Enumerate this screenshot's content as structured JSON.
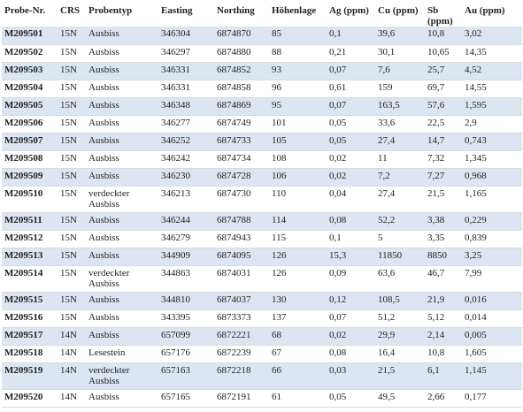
{
  "table": {
    "headers": [
      "Probe-Nr.",
      "CRS",
      "Probentyp",
      "Easting",
      "Northing",
      "Höhenlage",
      "Ag (ppm)",
      "Cu (ppm)",
      "Sb (ppm)",
      "Au (ppm)"
    ],
    "rows": [
      [
        "M209501",
        "15N",
        "Ausbiss",
        "346304",
        "6874870",
        "85",
        "0,1",
        "39,6",
        "10,8",
        "3,02"
      ],
      [
        "M209502",
        "15N",
        "Ausbiss",
        "346297",
        "6874880",
        "88",
        "0,21",
        "30,1",
        "10,65",
        "14,35"
      ],
      [
        "M209503",
        "15N",
        "Ausbiss",
        "346331",
        "6874852",
        "93",
        "0,07",
        "7,6",
        "25,7",
        "4,52"
      ],
      [
        "M209504",
        "15N",
        "Ausbiss",
        "346331",
        "6874858",
        "96",
        "0,61",
        "159",
        "69,7",
        "14,55"
      ],
      [
        "M209505",
        "15N",
        "Ausbiss",
        "346348",
        "6874869",
        "95",
        "0,07",
        "163,5",
        "57,6",
        "1,595"
      ],
      [
        "M209506",
        "15N",
        "Ausbiss",
        "346277",
        "6874749",
        "101",
        "0,05",
        "33,6",
        "22,5",
        "2,9"
      ],
      [
        "M209507",
        "15N",
        "Ausbiss",
        "346252",
        "6874733",
        "105",
        "0,05",
        "27,4",
        "14,7",
        "0,743"
      ],
      [
        "M209508",
        "15N",
        "Ausbiss",
        "346242",
        "6874734",
        "108",
        "0,02",
        "11",
        "7,32",
        "1,345"
      ],
      [
        "M209509",
        "15N",
        "Ausbiss",
        "346230",
        "6874728",
        "106",
        "0,02",
        "7,2",
        "7,27",
        "0,968"
      ],
      [
        "M209510",
        "15N",
        "verdeckter Ausbiss",
        "346213",
        "6874730",
        "110",
        "0,04",
        "27,4",
        "21,5",
        "1,165"
      ],
      [
        "M209511",
        "15N",
        "Ausbiss",
        "346244",
        "6874788",
        "114",
        "0,08",
        "52,2",
        "3,38",
        "0,229"
      ],
      [
        "M209512",
        "15N",
        "Ausbiss",
        "346279",
        "6874943",
        "115",
        "0,1",
        "5",
        "3,35",
        "0,839"
      ],
      [
        "M209513",
        "15N",
        "Ausbiss",
        "344909",
        "6874095",
        "126",
        "15,3",
        "11850",
        "8850",
        "3,25"
      ],
      [
        "M209514",
        "15N",
        "verdeckter Ausbiss",
        "344863",
        "6874031",
        "126",
        "0,09",
        "63,6",
        "46,7",
        "7,99"
      ],
      [
        "M209515",
        "15N",
        "Ausbiss",
        "344810",
        "6874037",
        "130",
        "0,12",
        "108,5",
        "21,9",
        "0,016"
      ],
      [
        "M209516",
        "15N",
        "Ausbiss",
        "343395",
        "6873373",
        "137",
        "0,07",
        "51,2",
        "5,12",
        "0,014"
      ],
      [
        "M209517",
        "14N",
        "Ausbiss",
        "657099",
        "6872221",
        "68",
        "0,02",
        "29,9",
        "2,14",
        "0,005"
      ],
      [
        "M209518",
        "14N",
        "Lesestein",
        "657176",
        "6872239",
        "67",
        "0,08",
        "16,4",
        "10,8",
        "1,605"
      ],
      [
        "M209519",
        "14N",
        "verdeckter Ausbiss",
        "657163",
        "6872218",
        "66",
        "0,03",
        "21,5",
        "6,1",
        "1,145"
      ],
      [
        "M209520",
        "14N",
        "Ausbiss",
        "657165",
        "6872191",
        "61",
        "0,05",
        "49,5",
        "2,66",
        "0,177"
      ]
    ]
  }
}
